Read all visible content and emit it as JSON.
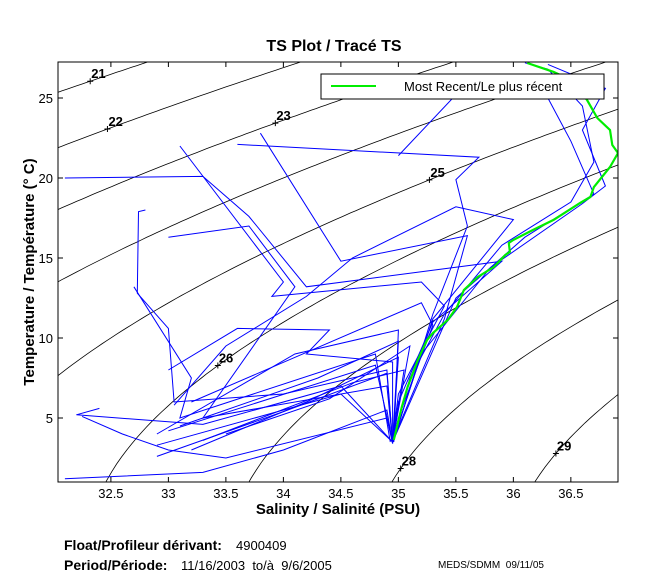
{
  "chart_data": {
    "type": "line",
    "title": "TS Plot / Tracé TS",
    "xlabel": "Salinity / Salinité (PSU)",
    "ylabel": "Temperature / Température (° C)",
    "xlim": [
      32.04,
      36.91
    ],
    "ylim": [
      1.0,
      27.25
    ],
    "xticks": [
      32.5,
      33,
      33.5,
      34,
      34.5,
      35,
      35.5,
      36,
      36.5
    ],
    "xtick_labels": [
      "32.5",
      "33",
      "33.5",
      "34",
      "34.5",
      "35",
      "35.5",
      "36",
      "36.5"
    ],
    "yticks": [
      5,
      10,
      15,
      20,
      25
    ],
    "ytick_labels": [
      "5",
      "10",
      "15",
      "20",
      "25"
    ],
    "grid": false,
    "legend": {
      "placement": "top-right",
      "entries": [
        {
          "label": "Most Recent/Le plus récent",
          "color": "#00ee00"
        }
      ]
    },
    "density_contours": {
      "sigma_t_levels": [
        21,
        22,
        23,
        24,
        25,
        26,
        27,
        28,
        29
      ],
      "labels": [
        {
          "text": "21",
          "sigma": 21,
          "s": 32.32
        },
        {
          "text": "22",
          "sigma": 22,
          "s": 32.47
        },
        {
          "text": "23",
          "sigma": 23,
          "s": 33.93
        },
        {
          "text": "25",
          "sigma": 25,
          "s": 35.27
        },
        {
          "text": "26",
          "sigma": 26,
          "s": 33.43
        },
        {
          "text": "28",
          "sigma": 28,
          "s": 35.02
        },
        {
          "text": "29",
          "sigma": 29,
          "s": 36.37
        }
      ],
      "color": "#000000"
    },
    "series": [
      {
        "name": "Most Recent/Le plus récent",
        "color": "#00ee00",
        "points": [
          [
            36.12,
            27.19
          ],
          [
            36.35,
            26.63
          ],
          [
            36.5,
            26.13
          ],
          [
            36.64,
            24.88
          ],
          [
            36.73,
            23.75
          ],
          [
            36.84,
            23.0
          ],
          [
            36.86,
            22.06
          ],
          [
            36.91,
            21.56
          ],
          [
            36.84,
            20.69
          ],
          [
            36.7,
            19.44
          ],
          [
            36.67,
            18.81
          ],
          [
            36.58,
            18.44
          ],
          [
            36.35,
            17.38
          ],
          [
            36.17,
            16.75
          ],
          [
            36.0,
            16.13
          ],
          [
            35.96,
            15.94
          ],
          [
            35.97,
            15.38
          ],
          [
            35.93,
            15.19
          ],
          [
            35.83,
            14.44
          ],
          [
            35.69,
            13.81
          ],
          [
            35.57,
            13.0
          ],
          [
            35.51,
            11.94
          ],
          [
            35.43,
            11.13
          ],
          [
            35.3,
            10.31
          ],
          [
            35.25,
            9.88
          ],
          [
            35.17,
            8.63
          ],
          [
            35.08,
            6.94
          ],
          [
            35.03,
            5.69
          ],
          [
            34.96,
            3.63
          ]
        ]
      },
      {
        "name": "profiles",
        "color": "#0000ff",
        "profiles": [
          [
            [
              36.1,
              27.2
            ],
            [
              36.3,
              26.8
            ],
            [
              36.6,
              24.5
            ],
            [
              36.7,
              21
            ],
            [
              36.5,
              18.5
            ],
            [
              35.9,
              15.8
            ],
            [
              35.4,
              11.5
            ],
            [
              35.1,
              7.5
            ],
            [
              34.95,
              3.5
            ]
          ],
          [
            [
              32.1,
              20
            ],
            [
              33.3,
              20.1
            ],
            [
              33.7,
              17.6
            ],
            [
              34.2,
              13.2
            ],
            [
              35.9,
              14.8
            ],
            [
              35.3,
              11
            ],
            [
              35,
              6
            ],
            [
              34.95,
              3.4
            ]
          ],
          [
            [
              33.1,
              22.0
            ],
            [
              34.0,
              13.5
            ],
            [
              33.9,
              12.6
            ],
            [
              35.2,
              13.5
            ],
            [
              35.4,
              12
            ],
            [
              35,
              6.5
            ],
            [
              34.95,
              3.6
            ]
          ],
          [
            [
              33.6,
              22.1
            ],
            [
              35.7,
              21.3
            ],
            [
              35.5,
              19.9
            ],
            [
              35.6,
              17
            ],
            [
              35.3,
              11.5
            ],
            [
              34.96,
              3.6
            ]
          ],
          [
            [
              33.8,
              22.8
            ],
            [
              34.5,
              14.8
            ],
            [
              35.6,
              16.4
            ],
            [
              35.4,
              11.2
            ],
            [
              34.95,
              3.6
            ]
          ],
          [
            [
              32.8,
              18
            ],
            [
              32.74,
              17.9
            ],
            [
              32.73,
              12.8
            ],
            [
              33.0,
              10.6
            ],
            [
              33.05,
              6
            ],
            [
              34.0,
              6.5
            ],
            [
              34.9,
              8
            ],
            [
              34.95,
              3.5
            ]
          ],
          [
            [
              33.0,
              16.3
            ],
            [
              33.7,
              17.0
            ],
            [
              34.1,
              13.2
            ],
            [
              33.3,
              5
            ],
            [
              34.9,
              7
            ],
            [
              34.95,
              3.5
            ]
          ],
          [
            [
              32.7,
              13.2
            ],
            [
              33.2,
              7.5
            ],
            [
              33.1,
              5.0
            ],
            [
              34.8,
              9
            ],
            [
              34.93,
              3.5
            ]
          ],
          [
            [
              32.25,
              5.1
            ],
            [
              32.6,
              4.0
            ],
            [
              33.0,
              3.0
            ],
            [
              33.5,
              2.5
            ],
            [
              34.9,
              5
            ],
            [
              34.95,
              3.4
            ]
          ],
          [
            [
              32.4,
              5.6
            ],
            [
              32.2,
              5.2
            ],
            [
              33.3,
              4.6
            ],
            [
              34.5,
              7
            ],
            [
              34.95,
              3.5
            ]
          ],
          [
            [
              32.1,
              1.2
            ],
            [
              33.3,
              1.6
            ],
            [
              34.0,
              3.0
            ],
            [
              34.9,
              5.5
            ],
            [
              34.95,
              3.4
            ]
          ],
          [
            [
              32.9,
              4.0
            ],
            [
              34.1,
              9.0
            ],
            [
              35.0,
              10.5
            ],
            [
              34.96,
              3.5
            ]
          ],
          [
            [
              33.2,
              6.0
            ],
            [
              35.2,
              12.2
            ],
            [
              35.3,
              10.8
            ],
            [
              35.0,
              5
            ],
            [
              34.95,
              3.5
            ]
          ],
          [
            [
              33.0,
              8.0
            ],
            [
              33.6,
              10.6
            ],
            [
              34.4,
              10.5
            ],
            [
              34.2,
              9.0
            ],
            [
              34.95,
              8.5
            ],
            [
              34.95,
              3.5
            ]
          ],
          [
            [
              33.5,
              4.0
            ],
            [
              34.4,
              6.2
            ],
            [
              35.1,
              9.5
            ],
            [
              34.95,
              3.5
            ]
          ],
          [
            [
              32.9,
              2.6
            ],
            [
              34.0,
              5.4
            ],
            [
              34.9,
              7.8
            ],
            [
              34.95,
              3.5
            ]
          ],
          [
            [
              33.2,
              3.0
            ],
            [
              34.2,
              6.0
            ],
            [
              35.0,
              8.8
            ],
            [
              34.95,
              3.5
            ]
          ],
          [
            [
              33.05,
              5.8
            ],
            [
              33.5,
              9.5
            ],
            [
              34.2,
              12.6
            ],
            [
              34.6,
              15.0
            ],
            [
              35.5,
              18.2
            ],
            [
              36.0,
              17.4
            ],
            [
              35.3,
              11.2
            ],
            [
              34.95,
              3.5
            ]
          ],
          [
            [
              35.0,
              21.4
            ],
            [
              35.5,
              25.2
            ],
            [
              36.3,
              25.0
            ],
            [
              36.5,
              22.3
            ],
            [
              36.7,
              19.0
            ],
            [
              36.1,
              16.3
            ],
            [
              35.5,
              12.5
            ],
            [
              34.95,
              3.5
            ]
          ],
          [
            [
              36.3,
              27.1
            ],
            [
              36.8,
              25.6
            ],
            [
              36.6,
              23.0
            ],
            [
              36.8,
              19.5
            ],
            [
              36.6,
              18.4
            ],
            [
              35.8,
              14.4
            ],
            [
              35.2,
              9
            ],
            [
              34.95,
              3.5
            ]
          ],
          [
            [
              33.1,
              4.5
            ],
            [
              34.3,
              7.5
            ],
            [
              35.0,
              9.8
            ],
            [
              34.95,
              3.5
            ]
          ],
          [
            [
              32.9,
              3.3
            ],
            [
              34.5,
              6.5
            ],
            [
              34.95,
              3.5
            ]
          ],
          [
            [
              33.3,
              3.6
            ],
            [
              34.6,
              7.2
            ],
            [
              35.05,
              8.0
            ],
            [
              34.95,
              3.5
            ]
          ],
          [
            [
              33.0,
              4.2
            ],
            [
              34.8,
              8.3
            ],
            [
              34.95,
              3.5
            ]
          ]
        ]
      }
    ]
  },
  "footer": {
    "float_label": "Float/Profileur dérivant:",
    "float_id": "4900409",
    "period_label": "Period/Période:",
    "period_value": "11/16/2003  to/à  9/6/2005",
    "credit": "MEDS/SDMM  09/11/05"
  }
}
